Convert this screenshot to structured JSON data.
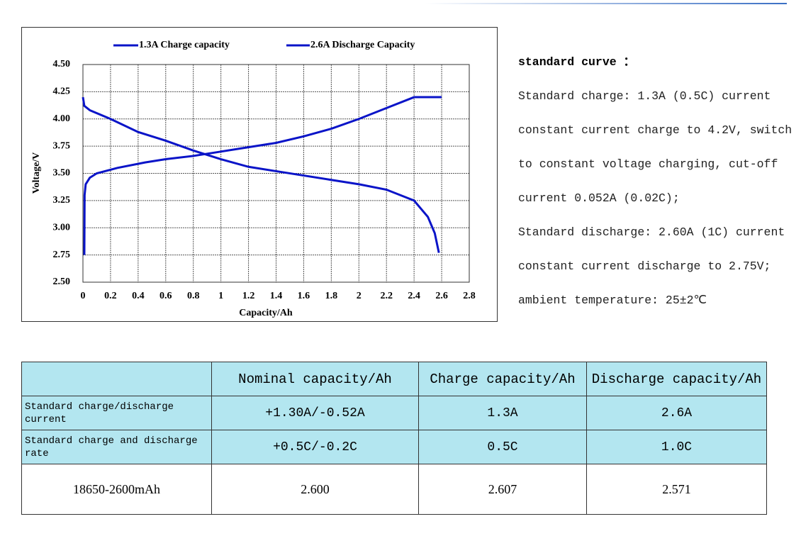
{
  "chart_data": {
    "type": "line",
    "x_label": "Capacity/Ah",
    "y_label": "Voltage/V",
    "xlim": [
      0,
      2.8
    ],
    "xticks": [
      0,
      0.2,
      0.4,
      0.6,
      0.8,
      1,
      1.2,
      1.4,
      1.6,
      1.8,
      2,
      2.2,
      2.4,
      2.6,
      2.8
    ],
    "ylim": [
      2.5,
      4.5
    ],
    "yticks": [
      {
        "value": 2.5,
        "label": "2.50"
      },
      2.75,
      {
        "value": 3,
        "label": "3.00"
      },
      3.25,
      {
        "value": 3.5,
        "label": "3.50"
      },
      3.75,
      {
        "value": 4,
        "label": "4.00"
      },
      4.25,
      {
        "value": 4.5,
        "label": "4.50"
      }
    ],
    "grid": true,
    "series": [
      {
        "name": "1.3A Charge capacity",
        "color": "#0a14c8",
        "x": [
          0.01,
          0.012,
          0.02,
          0.05,
          0.1,
          0.25,
          0.45,
          0.6,
          0.8,
          1.0,
          1.2,
          1.4,
          1.6,
          1.8,
          2.0,
          2.2,
          2.4,
          2.6
        ],
        "values": [
          2.75,
          3.3,
          3.4,
          3.46,
          3.5,
          3.55,
          3.6,
          3.63,
          3.66,
          3.7,
          3.74,
          3.78,
          3.84,
          3.91,
          4.0,
          4.1,
          4.2,
          4.2
        ]
      },
      {
        "name": "2.6A Discharge Capacity",
        "color": "#0a14c8",
        "x": [
          0,
          0.01,
          0.05,
          0.2,
          0.4,
          0.6,
          0.8,
          1.0,
          1.2,
          1.4,
          1.6,
          1.8,
          2.0,
          2.2,
          2.4,
          2.5,
          2.55,
          2.58
        ],
        "values": [
          4.2,
          4.12,
          4.08,
          4.0,
          3.88,
          3.8,
          3.71,
          3.63,
          3.56,
          3.52,
          3.48,
          3.44,
          3.4,
          3.35,
          3.25,
          3.1,
          2.95,
          2.77
        ]
      }
    ]
  },
  "text": {
    "heading": "standard curve ：",
    "lines": [
      "Standard charge: 1.3A (0.5C) current",
      "constant current charge to 4.2V, switch",
      "to constant voltage charging, cut-off",
      "current 0.052A (0.02C);",
      "Standard discharge: 2.60A (1C) current",
      "constant current discharge to 2.75V;",
      "ambient temperature: 25±2℃"
    ]
  },
  "table": {
    "header": [
      "Nominal capacity/Ah",
      "Charge capacity/Ah",
      "Discharge capacity/Ah"
    ],
    "rows": [
      [
        "Standard charge/discharge current",
        "+1.30A/-0.52A",
        "1.3A",
        "2.6A"
      ],
      [
        "Standard charge and discharge rate",
        "+0.5C/-0.2C",
        "0.5C",
        "1.0C"
      ],
      [
        "18650-2600mAh",
        "2.600",
        "2.607",
        "2.571"
      ]
    ]
  }
}
